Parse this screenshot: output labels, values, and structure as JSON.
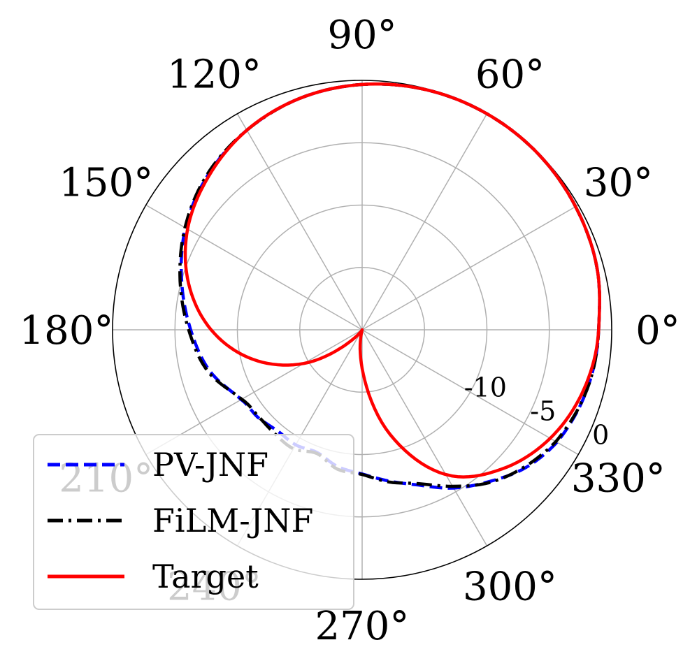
{
  "chart_data": {
    "type": "polar-line",
    "title": "",
    "theta_unit": "degrees",
    "r_unit": "dB",
    "r_range": [
      -20,
      0
    ],
    "angular_ticks": [
      {
        "deg": 0,
        "label": "0°"
      },
      {
        "deg": 30,
        "label": "30°"
      },
      {
        "deg": 60,
        "label": "60°"
      },
      {
        "deg": 90,
        "label": "90°"
      },
      {
        "deg": 120,
        "label": "120°"
      },
      {
        "deg": 150,
        "label": "150°"
      },
      {
        "deg": 180,
        "label": "180°"
      },
      {
        "deg": 210,
        "label": "210°"
      },
      {
        "deg": 240,
        "label": "240°"
      },
      {
        "deg": 270,
        "label": "270°"
      },
      {
        "deg": 300,
        "label": "300°"
      },
      {
        "deg": 330,
        "label": "330°"
      }
    ],
    "radial_ticks": [
      {
        "value": -15,
        "label": ""
      },
      {
        "value": -10,
        "label": "-10"
      },
      {
        "value": -5,
        "label": "-5"
      },
      {
        "value": 0,
        "label": "0"
      }
    ],
    "radial_label_angle_deg": 337.5,
    "grid": true,
    "legend": {
      "placement": "lower-left",
      "entries": [
        {
          "name": "PV-JNF",
          "color": "#0000ff",
          "style": "dashed"
        },
        {
          "name": "FiLM-JNF",
          "color": "#000000",
          "style": "dashdot"
        },
        {
          "name": "Target",
          "color": "#ff0000",
          "style": "solid"
        }
      ]
    },
    "series": [
      {
        "name": "PV-JNF",
        "color": "#0000ff",
        "style": "dashed",
        "theta": [
          0,
          15,
          30,
          45,
          60,
          75,
          90,
          105,
          120,
          135,
          150,
          165,
          180,
          195,
          210,
          220,
          230,
          240,
          250,
          260,
          270,
          280,
          290,
          300,
          310,
          320,
          330,
          345,
          360
        ],
        "r": [
          -1.05,
          -0.53,
          -0.25,
          -0.05,
          0,
          -0.08,
          -0.33,
          -0.78,
          -1.52,
          -2.5,
          -3.65,
          -5.03,
          -6.26,
          -7.34,
          -8.81,
          -9.09,
          -9.43,
          -9.35,
          -9.52,
          -8.85,
          -8.44,
          -7.69,
          -6.75,
          -5.35,
          -4.12,
          -2.84,
          -1.97,
          -1.36,
          -1.05
        ]
      },
      {
        "name": "FiLM-JNF",
        "color": "#000000",
        "style": "dashdot",
        "theta": [
          0,
          15,
          30,
          45,
          60,
          75,
          90,
          105,
          120,
          135,
          150,
          165,
          180,
          195,
          210,
          220,
          230,
          240,
          250,
          260,
          270,
          280,
          290,
          300,
          310,
          320,
          330,
          345,
          360
        ],
        "r": [
          -1.05,
          -0.53,
          -0.25,
          -0.05,
          0,
          -0.08,
          -0.33,
          -0.78,
          -1.52,
          -2.42,
          -3.61,
          -4.9,
          -6.1,
          -7.19,
          -8.86,
          -9.17,
          -9.12,
          -8.99,
          -9.44,
          -8.65,
          -8.4,
          -7.61,
          -6.88,
          -5.51,
          -4.03,
          -2.95,
          -2.07,
          -1.36,
          -1.05
        ]
      },
      {
        "name": "Target",
        "color": "#ff0000",
        "style": "solid",
        "theta": [
          0,
          15,
          30,
          45,
          60,
          75,
          90,
          105,
          120,
          135,
          150,
          165,
          180,
          195,
          210,
          225,
          240,
          255,
          270,
          285,
          300,
          315,
          330,
          345,
          360
        ],
        "r": [
          -1.05,
          -0.53,
          -0.25,
          -0.05,
          0,
          -0.08,
          -0.33,
          -0.78,
          -1.52,
          -2.6,
          -3.85,
          -5.6,
          -7.9,
          -10.9,
          -14.6,
          -18.8,
          -20,
          -20,
          -16.9,
          -11.3,
          -6.6,
          -4.2,
          -2.6,
          -1.6,
          -1.05
        ]
      }
    ]
  }
}
